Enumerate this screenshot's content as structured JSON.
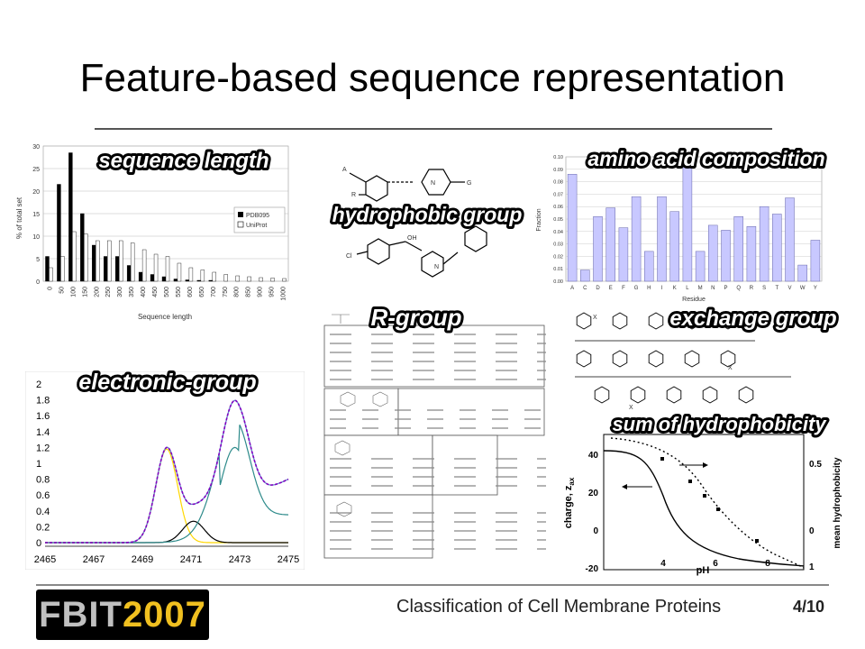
{
  "slide": {
    "title": "Feature-based sequence representation",
    "footer": "Classification of Cell Membrane Proteins",
    "page": "4/10",
    "logo": {
      "left": "FBIT",
      "right": "2007"
    }
  },
  "labels": {
    "sequence_length": "sequence length",
    "hydrophobic_group": "hydrophobic group",
    "amino_acid_composition": "amino acid composition",
    "r_group": "R-group",
    "exchange_group": "exchange group",
    "electronic_group": "electronic-group",
    "sum_hydrophobicity": "sum of hydrophobicity"
  },
  "chart_data": [
    {
      "type": "bar",
      "categories": [
        "0",
        "50",
        "100",
        "150",
        "200",
        "250",
        "300",
        "350",
        "400",
        "450",
        "500",
        "550",
        "600",
        "650",
        "700",
        "750",
        "800",
        "850",
        "900",
        "950",
        "1000"
      ],
      "series": [
        {
          "name": "PDB095",
          "values": [
            5.5,
            21.5,
            28.5,
            15,
            8,
            5.5,
            5.5,
            3.5,
            2,
            1.5,
            1,
            0.5,
            0.3,
            0.2,
            0.2,
            0,
            0,
            0,
            0,
            0,
            0
          ]
        },
        {
          "name": "UniProt",
          "values": [
            3,
            5.5,
            11,
            10.5,
            9,
            9,
            9,
            8.5,
            7,
            6,
            5.5,
            4,
            3,
            2.5,
            2,
            1.5,
            1.2,
            1,
            0.8,
            0.7,
            0.6
          ]
        }
      ],
      "xlabel": "Sequence length",
      "ylabel": "% of total set",
      "ylim": [
        0,
        30
      ],
      "yticks": [
        "0",
        "5",
        "10",
        "15",
        "20",
        "25",
        "30"
      ],
      "colors": [
        "#000000",
        "#ffffff"
      ]
    },
    {
      "type": "bar",
      "categories": [
        "A",
        "C",
        "D",
        "E",
        "F",
        "G",
        "H",
        "I",
        "K",
        "L",
        "M",
        "N",
        "P",
        "Q",
        "R",
        "S",
        "T",
        "V",
        "W",
        "Y"
      ],
      "values": [
        0.086,
        0.009,
        0.052,
        0.059,
        0.043,
        0.068,
        0.024,
        0.068,
        0.056,
        0.097,
        0.024,
        0.045,
        0.041,
        0.052,
        0.044,
        0.06,
        0.054,
        0.067,
        0.013,
        0.033
      ],
      "xlabel": "Residue",
      "ylabel": "Fraction",
      "ylim": [
        0,
        0.1
      ],
      "yticks": [
        "0.00",
        "0.01",
        "0.02",
        "0.03",
        "0.04",
        "0.05",
        "0.06",
        "0.07",
        "0.08",
        "0.09",
        "0.10"
      ],
      "colors": [
        "#c8c8ff"
      ]
    },
    {
      "type": "line",
      "x_ticks": [
        "2465",
        "2467",
        "2469",
        "2471",
        "2473",
        "2475"
      ],
      "y_ticks": [
        "0",
        "0.2",
        "0.4",
        "0.6",
        "0.8",
        "1",
        "1.2",
        "1.4",
        "1.6",
        "1.8",
        "2"
      ],
      "xlim": [
        2465,
        2475
      ],
      "ylim": [
        0,
        2
      ],
      "series_colors": [
        "#8000c0",
        "#ffd700",
        "#2e8b8b",
        "#000000",
        "#6688cc"
      ]
    },
    {
      "type": "line",
      "x_ticks": [
        "4",
        "6",
        "8"
      ],
      "y_ticks_left": [
        "-20",
        "0",
        "20",
        "40"
      ],
      "y_ticks_right": [
        "0",
        "0.5",
        "1"
      ],
      "xlabel": "pH",
      "ylabel_left": "charge, z",
      "ylabel_left_sub": "ax",
      "ylabel_right": "mean hydrophobicity"
    }
  ]
}
